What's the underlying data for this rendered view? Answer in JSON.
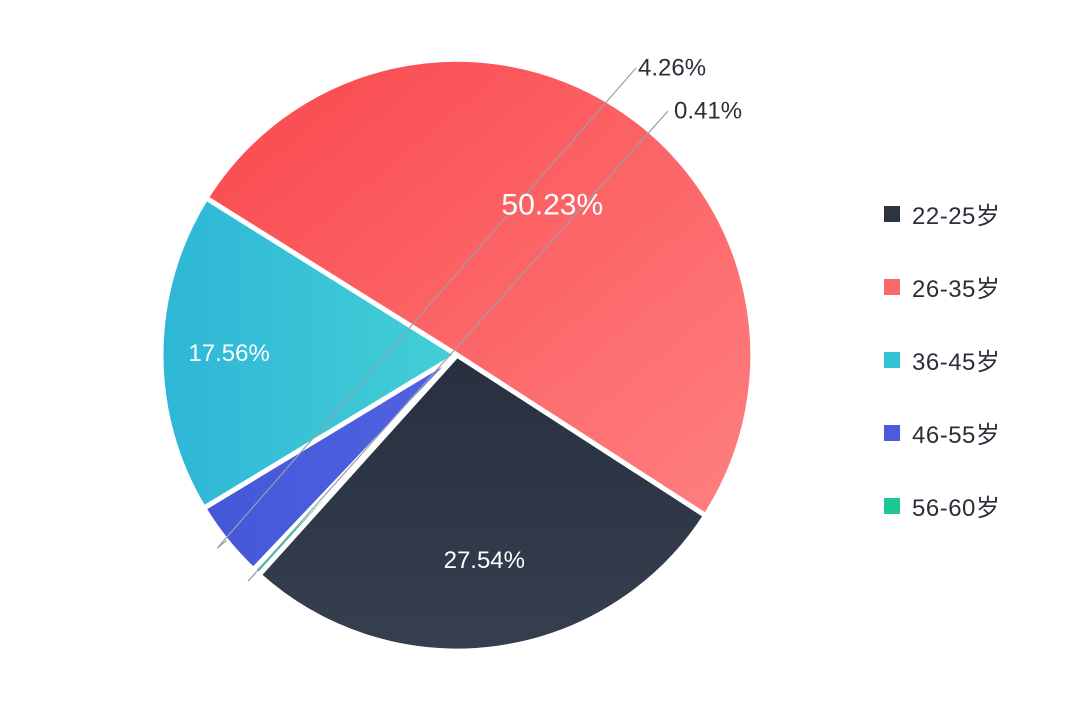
{
  "chart_data": {
    "type": "pie",
    "slices": [
      {
        "label": "22-25岁",
        "value": 27.54,
        "display": "27.54%",
        "color": "#2c3441",
        "label_color": "#ffffff"
      },
      {
        "label": "26-35岁",
        "value": 50.23,
        "display": "50.23%",
        "color": "#fb6a6b",
        "label_color": "#ffffff"
      },
      {
        "label": "36-45岁",
        "value": 17.56,
        "display": "17.56%",
        "color": "#34c2d6",
        "label_color": "#ffffff"
      },
      {
        "label": "46-55岁",
        "value": 4.26,
        "display": "4.26%",
        "color": "#4a5bdd",
        "label_color": "#2a2f38"
      },
      {
        "label": "56-60岁",
        "value": 0.41,
        "display": "0.41%",
        "color": "#1dc795",
        "label_color": "#2a2f38"
      }
    ],
    "legend_position": "right"
  }
}
